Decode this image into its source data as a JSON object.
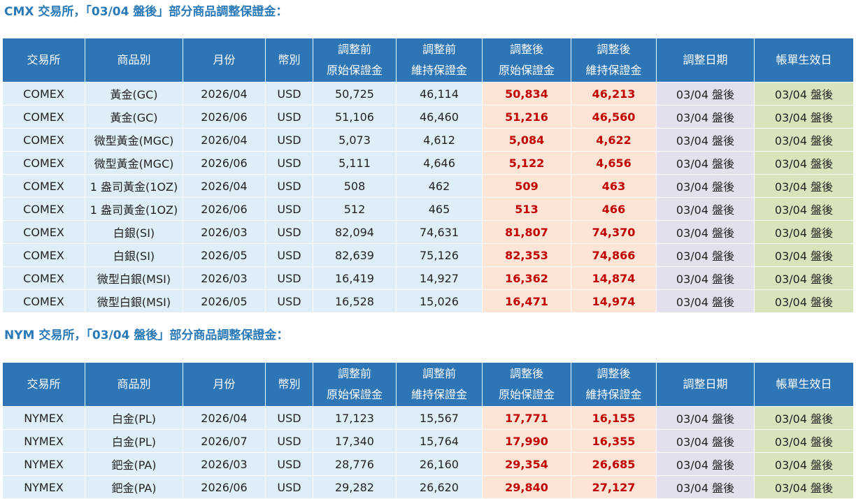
{
  "sections": [
    {
      "title": "CMX 交易所，「03/04 盤後」部分商品調整保證金：",
      "headers": [
        "交易所",
        "商品別",
        "月份",
        "幣別",
        [
          "調整前",
          "原始保證金"
        ],
        [
          "調整前",
          "維持保證金"
        ],
        [
          "調整後",
          "原始保證金"
        ],
        [
          "調整後",
          "維持保證金"
        ],
        "調整日期",
        "帳單生效日"
      ],
      "rows": [
        [
          "COMEX",
          "黃金(GC)",
          "2026/04",
          "USD",
          "50,725",
          "46,114",
          "50,834",
          "46,213",
          "03/04 盤後",
          "03/04 盤後"
        ],
        [
          "COMEX",
          "黃金(GC)",
          "2026/06",
          "USD",
          "51,106",
          "46,460",
          "51,216",
          "46,560",
          "03/04 盤後",
          "03/04 盤後"
        ],
        [
          "COMEX",
          "微型黃金(MGC)",
          "2026/04",
          "USD",
          "5,073",
          "4,612",
          "5,084",
          "4,622",
          "03/04 盤後",
          "03/04 盤後"
        ],
        [
          "COMEX",
          "微型黃金(MGC)",
          "2026/06",
          "USD",
          "5,111",
          "4,646",
          "5,122",
          "4,656",
          "03/04 盤後",
          "03/04 盤後"
        ],
        [
          "COMEX",
          "1 盎司黃金(1OZ)",
          "2026/04",
          "USD",
          "508",
          "462",
          "509",
          "463",
          "03/04 盤後",
          "03/04 盤後"
        ],
        [
          "COMEX",
          "1 盎司黃金(1OZ)",
          "2026/06",
          "USD",
          "512",
          "465",
          "513",
          "466",
          "03/04 盤後",
          "03/04 盤後"
        ],
        [
          "COMEX",
          "白銀(SI)",
          "2026/03",
          "USD",
          "82,094",
          "74,631",
          "81,807",
          "74,370",
          "03/04 盤後",
          "03/04 盤後"
        ],
        [
          "COMEX",
          "白銀(SI)",
          "2026/05",
          "USD",
          "82,639",
          "75,126",
          "82,353",
          "74,866",
          "03/04 盤後",
          "03/04 盤後"
        ],
        [
          "COMEX",
          "微型白銀(MSI)",
          "2026/03",
          "USD",
          "16,419",
          "14,927",
          "16,362",
          "14,874",
          "03/04 盤後",
          "03/04 盤後"
        ],
        [
          "COMEX",
          "微型白銀(MSI)",
          "2026/05",
          "USD",
          "16,528",
          "15,026",
          "16,471",
          "14,974",
          "03/04 盤後",
          "03/04 盤後"
        ]
      ]
    },
    {
      "title": "NYM 交易所，「03/04 盤後」部分商品調整保證金：",
      "headers": [
        "交易所",
        "商品別",
        "月份",
        "幣別",
        [
          "調整前",
          "原始保證金"
        ],
        [
          "調整前",
          "維持保證金"
        ],
        [
          "調整後",
          "原始保證金"
        ],
        [
          "調整後",
          "維持保證金"
        ],
        "調整日期",
        "帳單生效日"
      ],
      "rows": [
        [
          "NYMEX",
          "白金(PL)",
          "2026/04",
          "USD",
          "17,123",
          "15,567",
          "17,771",
          "16,155",
          "03/04 盤後",
          "03/04 盤後"
        ],
        [
          "NYMEX",
          "白金(PL)",
          "2026/07",
          "USD",
          "17,340",
          "15,764",
          "17,990",
          "16,355",
          "03/04 盤後",
          "03/04 盤後"
        ],
        [
          "NYMEX",
          "鈀金(PA)",
          "2026/03",
          "USD",
          "28,776",
          "26,160",
          "29,354",
          "26,685",
          "03/04 盤後",
          "03/04 盤後"
        ],
        [
          "NYMEX",
          "鈀金(PA)",
          "2026/06",
          "USD",
          "29,282",
          "26,620",
          "29,840",
          "27,127",
          "03/04 盤後",
          "03/04 盤後"
        ]
      ]
    }
  ],
  "colors": {
    "title": "#2a7ab8",
    "header_bg": "#2e75b6",
    "cell_blue": "#deeef6",
    "cell_red_bg": "#fce4d6",
    "cell_red_text": "#c00000",
    "cell_purple": "#e4dfec",
    "cell_green": "#d8e4bc"
  }
}
